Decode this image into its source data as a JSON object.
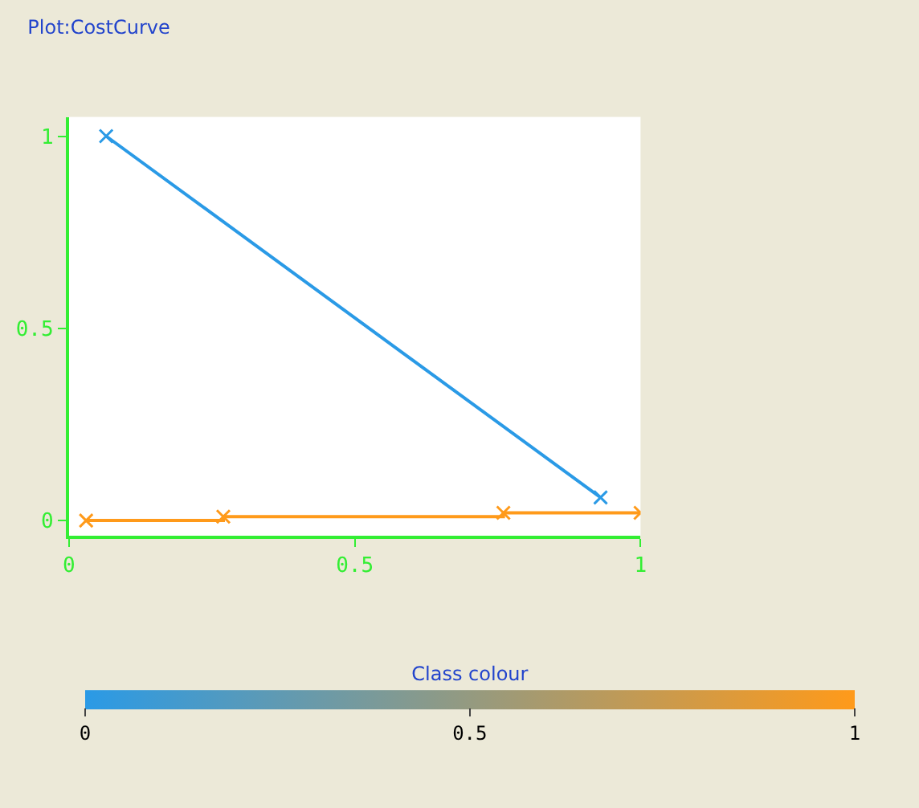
{
  "chart_data": {
    "type": "line",
    "title": "Plot:CostCurve",
    "xlim": [
      0,
      1.0
    ],
    "xticks": [
      0,
      0.5,
      1
    ],
    "ylim": [
      -0.04,
      1.05
    ],
    "yticks": [
      0,
      0.5,
      1
    ],
    "marker": "cross",
    "line_style": "solid",
    "clabel": "Class colour",
    "clim": [
      0,
      1
    ],
    "cticks": [
      0,
      0.5,
      1
    ],
    "series": [
      {
        "color": "#2a9ae6",
        "x": [
          0.065,
          0.93
        ],
        "values": [
          1.0,
          0.06
        ]
      },
      {
        "type": "step",
        "color": "#ff9a1a",
        "x": [
          0.03,
          0.27,
          0.76,
          1.0
        ],
        "values": [
          0.0,
          0.01,
          0.02,
          0.02
        ]
      }
    ]
  }
}
